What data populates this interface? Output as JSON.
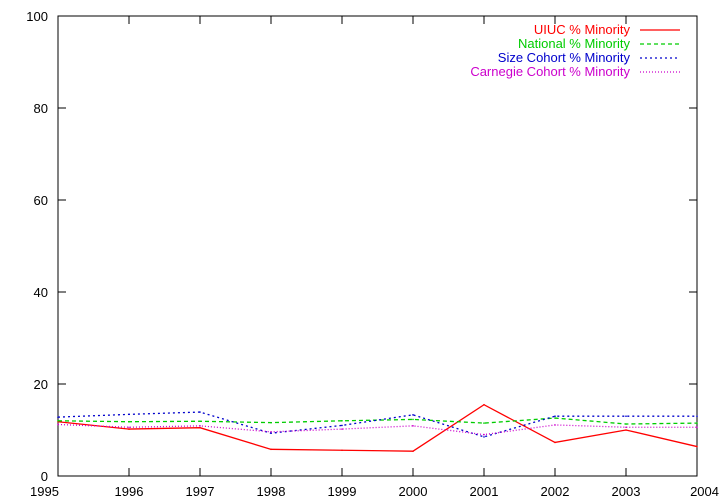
{
  "chart_data": {
    "type": "line",
    "title": "",
    "xlabel": "",
    "ylabel": "",
    "x": [
      1995,
      1996,
      1997,
      1998,
      1999,
      2000,
      2001,
      2002,
      2003,
      2004
    ],
    "xlim": [
      1995,
      2004
    ],
    "ylim": [
      0,
      100
    ],
    "x_ticks": [
      "1995",
      "1996",
      "1997",
      "1998",
      "1999",
      "2000",
      "2001",
      "2002",
      "2003",
      "2004"
    ],
    "y_ticks": [
      "0",
      "20",
      "40",
      "60",
      "80",
      "100"
    ],
    "grid": false,
    "legend_position": "top-right",
    "series": [
      {
        "name": "UIUC % Minority",
        "color": "#ff0000",
        "dash": "solid",
        "values": [
          11.8,
          10.2,
          10.5,
          5.8,
          5.6,
          5.4,
          15.5,
          7.3,
          10.0,
          6.4
        ]
      },
      {
        "name": "National % Minority",
        "color": "#00cc00",
        "dash": "dashed",
        "values": [
          12.0,
          11.8,
          11.9,
          11.6,
          12.0,
          12.3,
          11.5,
          12.6,
          11.3,
          11.5
        ]
      },
      {
        "name": "Size Cohort % Minority",
        "color": "#0000cc",
        "dash": "dotted",
        "values": [
          12.8,
          13.4,
          13.9,
          9.3,
          11.0,
          13.3,
          8.5,
          13.0,
          13.0,
          13.0
        ]
      },
      {
        "name": "Carnegie Cohort % Minority",
        "color": "#cc00cc",
        "dash": "fine-dotted",
        "values": [
          11.2,
          10.6,
          10.9,
          9.6,
          10.2,
          10.9,
          9.0,
          11.1,
          10.6,
          10.6
        ]
      }
    ]
  }
}
